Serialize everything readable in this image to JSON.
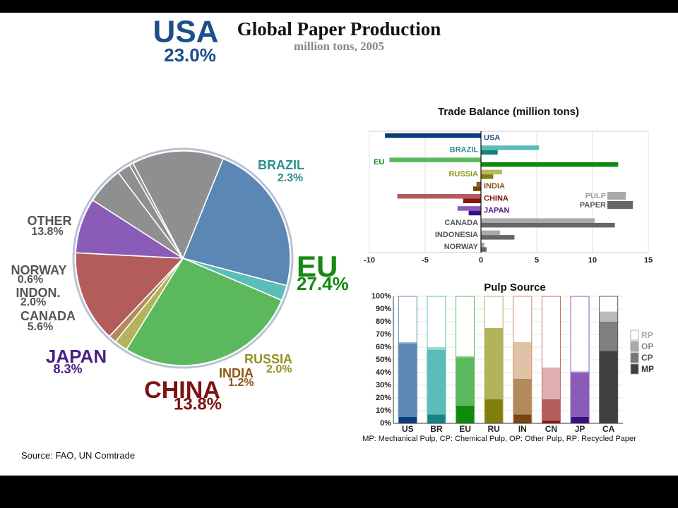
{
  "slide": {
    "title": "Global Paper Production",
    "subtitle": "million tons, 2005",
    "source": "Source: FAO, UN Comtrade"
  },
  "chart_data": [
    {
      "type": "pie",
      "title": "",
      "slices": [
        {
          "name": "USA",
          "value": 23.0,
          "pct_label": "23.0%",
          "color": "#5b87b4",
          "label_color": "#1d4f8a"
        },
        {
          "name": "BRAZIL",
          "value": 2.3,
          "pct_label": "2.3%",
          "color": "#5bbdb9",
          "label_color": "#2b8f8e"
        },
        {
          "name": "EU",
          "value": 27.4,
          "pct_label": "27.4%",
          "color": "#5cb85c",
          "label_color": "#138a13"
        },
        {
          "name": "RUSSIA",
          "value": 2.0,
          "pct_label": "2.0%",
          "color": "#b3b35c",
          "label_color": "#94901b"
        },
        {
          "name": "INDIA",
          "value": 1.2,
          "pct_label": "1.2%",
          "color": "#b38a5c",
          "label_color": "#8c5613"
        },
        {
          "name": "CHINA",
          "value": 13.8,
          "pct_label": "13.8%",
          "color": "#b35c5c",
          "label_color": "#7d1212"
        },
        {
          "name": "JAPAN",
          "value": 8.3,
          "pct_label": "8.3%",
          "color": "#8a5cb8",
          "label_color": "#4a1f85"
        },
        {
          "name": "CANADA",
          "value": 5.6,
          "pct_label": "5.6%",
          "color": "#8f8f8f",
          "label_color": "#555555"
        },
        {
          "name": "INDON.",
          "value": 2.0,
          "pct_label": "2.0%",
          "color": "#8f8f8f",
          "label_color": "#555555"
        },
        {
          "name": "NORWAY",
          "value": 0.6,
          "pct_label": "0.6%",
          "color": "#8f8f8f",
          "label_color": "#555555"
        },
        {
          "name": "OTHER",
          "value": 13.8,
          "pct_label": "13.8%",
          "color": "#8f8f8f",
          "label_color": "#555555"
        }
      ]
    },
    {
      "type": "bar",
      "orientation": "horizontal",
      "title": "Trade Balance (million tons)",
      "xlim": [
        -10,
        15
      ],
      "xticks": [
        "-10",
        "-5",
        "0",
        "5",
        "10",
        "15"
      ],
      "xtick_values": [
        -10,
        -5,
        0,
        5,
        10,
        15
      ],
      "categories": [
        "USA",
        "BRAZIL",
        "EU",
        "RUSSIA",
        "INDIA",
        "CHINA",
        "JAPAN",
        "CANADA",
        "INDONESIA",
        "NORWAY"
      ],
      "label_colors": [
        "#1d4f8a",
        "#2b8f8e",
        "#138a13",
        "#94901b",
        "#8c5613",
        "#7d1212",
        "#4a1f85",
        "#555555",
        "#555555",
        "#555555"
      ],
      "label_side": [
        "right",
        "left",
        "left",
        "left",
        "right",
        "right",
        "right",
        "left",
        "left",
        "left"
      ],
      "pulp_colors": [
        "#0d3c7a",
        "#5bbdb9",
        "#5cb85c",
        "#b8b85c",
        "#8c5a2b",
        "#b35c5c",
        "#8a5cb8",
        "#aaaaaa",
        "#aaaaaa",
        "#aaaaaa"
      ],
      "paper_colors": [
        "#0d3c7a",
        "#167f7f",
        "#0f8a0f",
        "#7f7f0d",
        "#7a4512",
        "#8b1414",
        "#3b0f7f",
        "#666666",
        "#666666",
        "#666666"
      ],
      "series": [
        {
          "name": "PULP",
          "values": [
            -8.6,
            5.2,
            -8.2,
            1.9,
            -0.4,
            -7.5,
            -2.1,
            10.2,
            1.7,
            0.3
          ]
        },
        {
          "name": "PAPER",
          "values": [
            0.0,
            1.5,
            12.3,
            1.1,
            -0.7,
            -1.6,
            -1.1,
            12.0,
            3.0,
            0.5
          ]
        }
      ],
      "legend": [
        {
          "name": "PULP",
          "color": "#aaaaaa"
        },
        {
          "name": "PAPER",
          "color": "#666666"
        }
      ],
      "legend_placement": "right",
      "grid": true
    },
    {
      "type": "bar",
      "stacked": true,
      "title": "Pulp Source",
      "note": "MP: Mechanical Pulp, CP: Chemical Pulp, OP: Other Pulp, RP: Recycled Paper",
      "categories": [
        "US",
        "BR",
        "EU",
        "RU",
        "IN",
        "CN",
        "JP",
        "CA"
      ],
      "yticks": [
        "0%",
        "10%",
        "20%",
        "30%",
        "40%",
        "50%",
        "60%",
        "70%",
        "80%",
        "90%",
        "100%"
      ],
      "ylim": [
        0,
        100
      ],
      "outline_colors": [
        "#5b87b4",
        "#5bbdb9",
        "#5cb85c",
        "#b3b35c",
        "#d08a6a",
        "#c06a6a",
        "#8a5cb8",
        "#555555"
      ],
      "series": [
        {
          "name": "MP",
          "values": [
            5,
            7,
            14,
            19,
            7,
            2,
            5,
            57
          ],
          "colors": [
            "#0d3c7a",
            "#168585",
            "#0f8a0f",
            "#7f7f0d",
            "#7a4512",
            "#8b1414",
            "#3b0f7f",
            "#404040"
          ]
        },
        {
          "name": "CP",
          "values": [
            58,
            51,
            38,
            56,
            28,
            17,
            35,
            23
          ],
          "colors": [
            "#5b87b4",
            "#5bbdb9",
            "#5cb85c",
            "#b3b35c",
            "#b38a5c",
            "#b35c5c",
            "#8a5cb8",
            "#7f7f7f"
          ]
        },
        {
          "name": "OP",
          "values": [
            1,
            2,
            1,
            0,
            29,
            25,
            1,
            8
          ],
          "colors": [
            "#9fbad6",
            "#9fd8d5",
            "#9fd69f",
            "#d6d69f",
            "#e0c3a6",
            "#e0b0b0",
            "#c3aee0",
            "#bbbbbb"
          ]
        },
        {
          "name": "RP",
          "values": [
            36,
            40,
            47,
            25,
            36,
            56,
            59,
            12
          ],
          "colors": [
            "#ffffff",
            "#ffffff",
            "#ffffff",
            "#ffffff",
            "#ffffff",
            "#ffffff",
            "#ffffff",
            "#ffffff"
          ]
        }
      ],
      "legend": [
        {
          "name": "RP",
          "color": "#ffffff",
          "text_color": "#aaaaaa"
        },
        {
          "name": "OP",
          "color": "#aaaaaa",
          "text_color": "#888888"
        },
        {
          "name": "CP",
          "color": "#777777",
          "text_color": "#555555"
        },
        {
          "name": "MP",
          "color": "#404040",
          "text_color": "#333333"
        }
      ],
      "legend_placement": "right"
    }
  ]
}
